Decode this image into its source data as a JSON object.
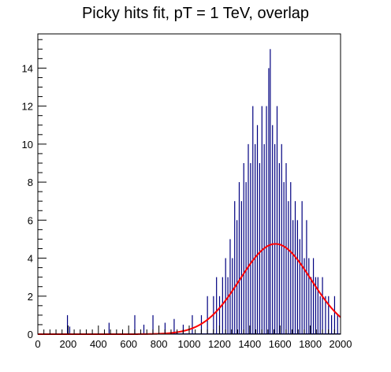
{
  "chart_data": {
    "type": "histogram",
    "title": "Picky hits fit, pT = 1 TeV, overlap",
    "xlabel": "",
    "ylabel": "",
    "xlim": [
      0,
      2000
    ],
    "ylim": [
      0,
      15.8
    ],
    "xticks": [
      0,
      200,
      400,
      600,
      800,
      1000,
      1200,
      1400,
      1600,
      1800,
      2000
    ],
    "yticks": [
      0,
      2,
      4,
      6,
      8,
      10,
      12,
      14
    ],
    "grid": false,
    "legend": "none",
    "histogram_color": "#000080",
    "fit_color": "#ff0000",
    "bin_width": 5,
    "bins": [
      {
        "x": 195,
        "y": 1
      },
      {
        "x": 210,
        "y": 0.4
      },
      {
        "x": 470,
        "y": 0.6
      },
      {
        "x": 640,
        "y": 1
      },
      {
        "x": 700,
        "y": 0.5
      },
      {
        "x": 760,
        "y": 1
      },
      {
        "x": 840,
        "y": 0.6
      },
      {
        "x": 900,
        "y": 0.8
      },
      {
        "x": 960,
        "y": 0.5
      },
      {
        "x": 1020,
        "y": 1
      },
      {
        "x": 1080,
        "y": 1
      },
      {
        "x": 1120,
        "y": 2
      },
      {
        "x": 1160,
        "y": 2
      },
      {
        "x": 1180,
        "y": 3
      },
      {
        "x": 1200,
        "y": 2
      },
      {
        "x": 1220,
        "y": 3
      },
      {
        "x": 1240,
        "y": 4
      },
      {
        "x": 1255,
        "y": 3
      },
      {
        "x": 1270,
        "y": 5
      },
      {
        "x": 1285,
        "y": 4
      },
      {
        "x": 1300,
        "y": 7
      },
      {
        "x": 1315,
        "y": 6
      },
      {
        "x": 1330,
        "y": 8
      },
      {
        "x": 1345,
        "y": 7
      },
      {
        "x": 1360,
        "y": 9
      },
      {
        "x": 1375,
        "y": 8
      },
      {
        "x": 1390,
        "y": 10
      },
      {
        "x": 1405,
        "y": 9
      },
      {
        "x": 1420,
        "y": 12
      },
      {
        "x": 1435,
        "y": 10
      },
      {
        "x": 1450,
        "y": 11
      },
      {
        "x": 1465,
        "y": 9
      },
      {
        "x": 1480,
        "y": 12
      },
      {
        "x": 1495,
        "y": 10
      },
      {
        "x": 1510,
        "y": 12
      },
      {
        "x": 1525,
        "y": 14
      },
      {
        "x": 1535,
        "y": 15
      },
      {
        "x": 1550,
        "y": 11
      },
      {
        "x": 1565,
        "y": 10
      },
      {
        "x": 1580,
        "y": 12
      },
      {
        "x": 1595,
        "y": 9
      },
      {
        "x": 1610,
        "y": 10
      },
      {
        "x": 1625,
        "y": 8
      },
      {
        "x": 1640,
        "y": 9
      },
      {
        "x": 1655,
        "y": 7
      },
      {
        "x": 1670,
        "y": 8
      },
      {
        "x": 1685,
        "y": 6
      },
      {
        "x": 1700,
        "y": 7
      },
      {
        "x": 1715,
        "y": 6
      },
      {
        "x": 1730,
        "y": 5
      },
      {
        "x": 1745,
        "y": 7
      },
      {
        "x": 1760,
        "y": 4
      },
      {
        "x": 1775,
        "y": 6
      },
      {
        "x": 1790,
        "y": 4
      },
      {
        "x": 1805,
        "y": 3
      },
      {
        "x": 1820,
        "y": 4
      },
      {
        "x": 1835,
        "y": 3
      },
      {
        "x": 1850,
        "y": 3
      },
      {
        "x": 1865,
        "y": 2
      },
      {
        "x": 1880,
        "y": 3
      },
      {
        "x": 1900,
        "y": 2
      },
      {
        "x": 1920,
        "y": 2
      },
      {
        "x": 1940,
        "y": 1
      },
      {
        "x": 1960,
        "y": 2
      },
      {
        "x": 1980,
        "y": 1
      }
    ],
    "fit": {
      "type": "gaussian",
      "amplitude": 4.75,
      "mean": 1570,
      "sigma": 235,
      "x_range": [
        0,
        2000
      ]
    }
  }
}
